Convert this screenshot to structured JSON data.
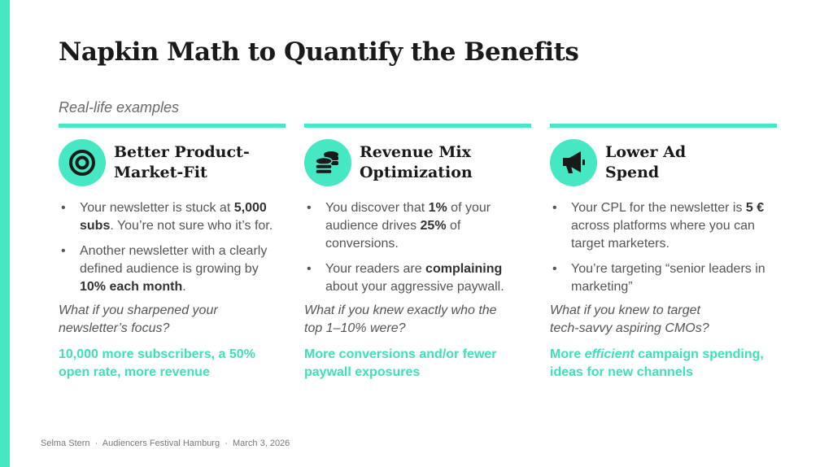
{
  "title": "Napkin Math to Quantify the Benefits",
  "subtitle": "Real-life examples",
  "accent": "#45e8c3",
  "columns": [
    {
      "icon": "target-icon",
      "heading": "Better Product-\nMarket-Fit",
      "bullets": [
        [
          {
            "t": "Your newsletter is stuck at "
          },
          {
            "t": "5,000 subs",
            "b": true
          },
          {
            "t": ". You’re not sure who it’s for."
          }
        ],
        [
          {
            "t": "Another newsletter with a clearly defined audience is growing by "
          },
          {
            "t": "10% each month",
            "b": true
          },
          {
            "t": "."
          }
        ]
      ],
      "question": "What if you sharpened your\nnewsletter’s focus?",
      "result": [
        {
          "t": "10,000 more subscribers, a 50%\nopen rate, more revenue"
        }
      ]
    },
    {
      "icon": "coins-icon",
      "heading": "Revenue Mix\nOptimization",
      "bullets": [
        [
          {
            "t": "You discover that "
          },
          {
            "t": "1%",
            "b": true
          },
          {
            "t": " of your audience drives "
          },
          {
            "t": "25%",
            "b": true
          },
          {
            "t": " of conversions."
          }
        ],
        [
          {
            "t": "Your readers are "
          },
          {
            "t": "complaining",
            "b": true
          },
          {
            "t": " about your aggressive paywall."
          }
        ]
      ],
      "question": "What if you knew exactly who the\ntop 1–10% were?",
      "result": [
        {
          "t": "More conversions and/or fewer\npaywall exposures"
        }
      ]
    },
    {
      "icon": "megaphone-icon",
      "heading": "Lower Ad\nSpend",
      "bullets": [
        [
          {
            "t": "Your CPL for the newsletter is "
          },
          {
            "t": "5 €",
            "b": true
          },
          {
            "t": " across platforms where you can target marketers."
          }
        ],
        [
          {
            "t": "You’re targeting “senior leaders in marketing”"
          }
        ]
      ],
      "question": "What if you knew to target\ntech-savvy aspiring CMOs?",
      "result": [
        {
          "t": "More "
        },
        {
          "t": "efficient",
          "i": true
        },
        {
          "t": " campaign spending,\nideas for new channels"
        }
      ]
    }
  ],
  "footer": "Selma Stern  ·  Audiencers Festival Hamburg  ·  March 3, 2026"
}
